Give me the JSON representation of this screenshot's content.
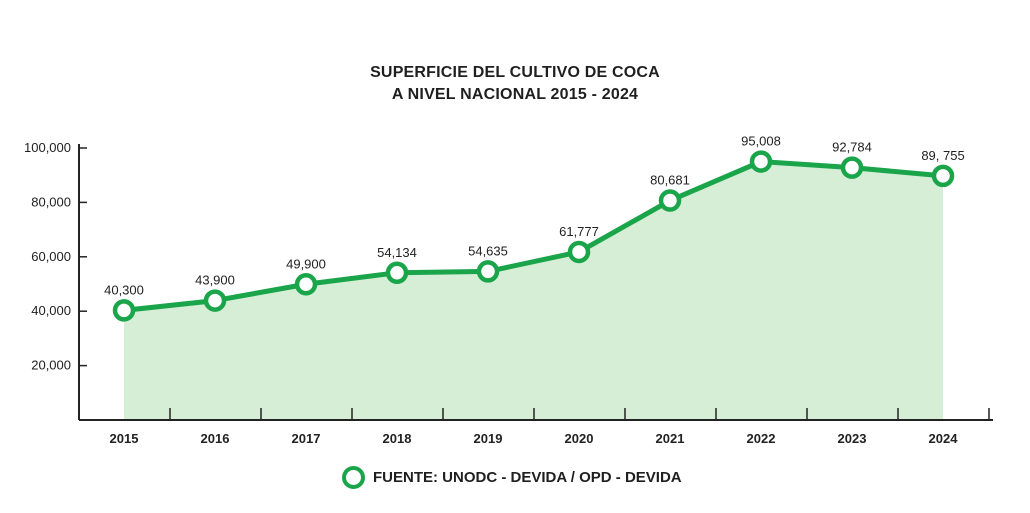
{
  "colors": {
    "line": "#1aa54a",
    "area": "#d6edd6",
    "axis": "#222222"
  },
  "chart_data": {
    "type": "area",
    "title_line1": "SUPERFICIE DEL CULTIVO DE COCA",
    "title_line2": "A NIVEL NACIONAL 2015 - 2024",
    "x": [
      "2015",
      "2016",
      "2017",
      "2018",
      "2019",
      "2020",
      "2021",
      "2022",
      "2023",
      "2024"
    ],
    "values": [
      40300,
      43900,
      49900,
      54134,
      54635,
      61777,
      80681,
      95008,
      92784,
      89755
    ],
    "data_labels": [
      "40,300",
      "43,900",
      "49,900",
      "54,134",
      "54,635",
      "61,777",
      "80,681",
      "95,008",
      "92,784",
      "89, 755"
    ],
    "y_ticks": [
      20000,
      40000,
      60000,
      80000,
      100000
    ],
    "y_tick_labels": [
      "20,000",
      "40,000",
      "60,000",
      "80,000",
      "100,000"
    ],
    "ylim": [
      0,
      100000
    ],
    "legend": "FUENTE: UNODC - DEVIDA / OPD - DEVIDA",
    "legend_position": "bottom-center",
    "grid": false
  }
}
